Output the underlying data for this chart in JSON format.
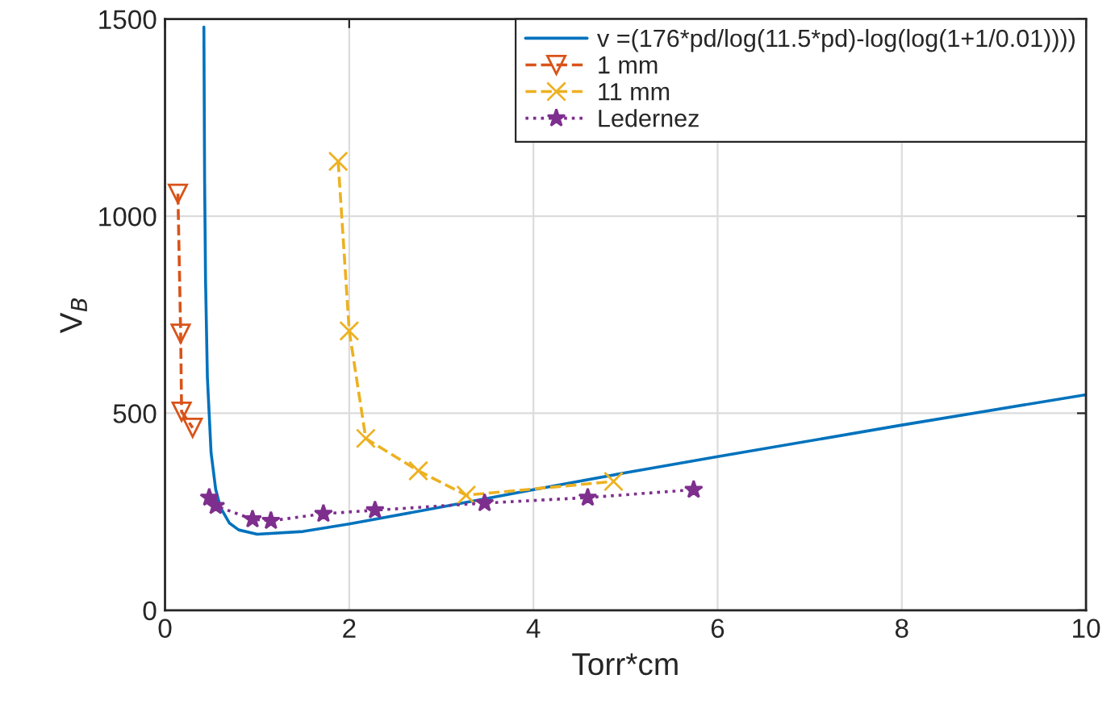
{
  "chart_data": {
    "type": "line",
    "xlabel": "Torr*cm",
    "ylabel": "V$_{B}$",
    "xlim": [
      0,
      10
    ],
    "ylim": [
      0,
      1500
    ],
    "xticks": [
      0,
      2,
      4,
      6,
      8,
      10
    ],
    "yticks": [
      0,
      500,
      1000,
      1500
    ],
    "grid": true,
    "legend": "top right",
    "series": [
      {
        "name": "v =(176*pd/log(11.5*pd)-log(log(1+1/0.01))))",
        "color": "#0072bd",
        "marker": "none",
        "line_style": "solid",
        "x": [
          0.422,
          0.43,
          0.44,
          0.46,
          0.5,
          0.55,
          0.6,
          0.7,
          0.8,
          1.0,
          1.5,
          2,
          3,
          4,
          5,
          6,
          8,
          10
        ],
        "values": [
          1480,
          1090,
          838,
          591,
          400,
          307,
          262,
          221,
          204,
          193,
          200,
          219,
          262,
          306,
          349,
          390,
          470,
          547
        ]
      },
      {
        "name": "1 mm",
        "color": "#d95319",
        "marker": "triangle",
        "line_style": "dashed",
        "x": [
          0.14,
          0.17,
          0.18,
          0.3
        ],
        "values": [
          1057,
          702,
          504,
          463
        ]
      },
      {
        "name": "11 mm",
        "color": "#edb120",
        "marker": "cross",
        "line_style": "dashed",
        "x": [
          1.88,
          2.0,
          2.18,
          2.75,
          3.27,
          4.87
        ],
        "values": [
          1139,
          709,
          436,
          354,
          292,
          327
        ]
      },
      {
        "name": "Ledernez",
        "color": "#7e2f8e",
        "marker": "star",
        "line_style": "dotted",
        "x": [
          0.48,
          0.55,
          0.95,
          1.15,
          1.72,
          2.28,
          3.47,
          4.59,
          5.74
        ],
        "values": [
          286,
          265,
          231,
          227,
          245,
          254,
          272,
          286,
          306
        ]
      }
    ]
  }
}
